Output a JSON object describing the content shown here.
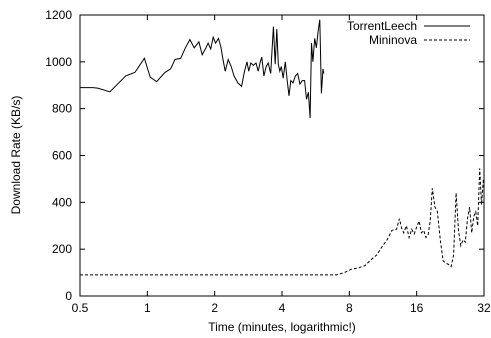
{
  "chart_data": {
    "type": "line",
    "title": "",
    "xlabel": "Time (minutes, logarithmic!)",
    "ylabel": "Download Rate (KB/s)",
    "x_scale": "log2",
    "xlim": [
      0.5,
      32
    ],
    "ylim": [
      0,
      1200
    ],
    "x_ticks": [
      0.5,
      1,
      2,
      4,
      8,
      16,
      32
    ],
    "x_tick_labels": [
      "0.5",
      "1",
      "2",
      "4",
      "8",
      "16",
      "32"
    ],
    "y_ticks": [
      0,
      200,
      400,
      600,
      800,
      1000,
      1200
    ],
    "y_tick_labels": [
      "0",
      "200",
      "400",
      "600",
      "800",
      "1000",
      "1200"
    ],
    "grid": false,
    "legend_position": "top-right",
    "series": [
      {
        "name": "TorrentLeech",
        "style": "solid",
        "points": [
          [
            0.5,
            890
          ],
          [
            0.57,
            890
          ],
          [
            0.6,
            888
          ],
          [
            0.68,
            872
          ],
          [
            0.8,
            940
          ],
          [
            0.88,
            955
          ],
          [
            0.97,
            1015
          ],
          [
            1.03,
            935
          ],
          [
            1.1,
            915
          ],
          [
            1.2,
            955
          ],
          [
            1.27,
            970
          ],
          [
            1.33,
            1010
          ],
          [
            1.41,
            1015
          ],
          [
            1.48,
            1060
          ],
          [
            1.55,
            1095
          ],
          [
            1.62,
            1060
          ],
          [
            1.7,
            1085
          ],
          [
            1.76,
            1030
          ],
          [
            1.83,
            1060
          ],
          [
            1.87,
            1080
          ],
          [
            1.92,
            1055
          ],
          [
            1.97,
            1105
          ],
          [
            2.02,
            1080
          ],
          [
            2.08,
            1100
          ],
          [
            2.13,
            1065
          ],
          [
            2.18,
            1010
          ],
          [
            2.23,
            960
          ],
          [
            2.3,
            1010
          ],
          [
            2.37,
            980
          ],
          [
            2.44,
            940
          ],
          [
            2.54,
            910
          ],
          [
            2.64,
            895
          ],
          [
            2.72,
            960
          ],
          [
            2.79,
            1000
          ],
          [
            2.84,
            960
          ],
          [
            2.9,
            995
          ],
          [
            2.98,
            985
          ],
          [
            3.06,
            995
          ],
          [
            3.13,
            960
          ],
          [
            3.2,
            1000
          ],
          [
            3.25,
            1020
          ],
          [
            3.32,
            940
          ],
          [
            3.4,
            980
          ],
          [
            3.47,
            995
          ],
          [
            3.56,
            950
          ],
          [
            3.66,
            1150
          ],
          [
            3.73,
            990
          ],
          [
            3.79,
            1140
          ],
          [
            3.85,
            990
          ],
          [
            3.91,
            960
          ],
          [
            3.97,
            980
          ],
          [
            4.05,
            930
          ],
          [
            4.14,
            1000
          ],
          [
            4.22,
            920
          ],
          [
            4.3,
            855
          ],
          [
            4.38,
            920
          ],
          [
            4.48,
            910
          ],
          [
            4.59,
            940
          ],
          [
            4.7,
            950
          ],
          [
            4.81,
            905
          ],
          [
            4.93,
            920
          ],
          [
            5.05,
            920
          ],
          [
            5.15,
            840
          ],
          [
            5.25,
            870
          ],
          [
            5.34,
            760
          ],
          [
            5.42,
            1080
          ],
          [
            5.5,
            1000
          ],
          [
            5.6,
            1100
          ],
          [
            5.7,
            1060
          ],
          [
            5.8,
            1130
          ],
          [
            5.9,
            1180
          ],
          [
            6.0,
            865
          ],
          [
            6.1,
            970
          ],
          [
            6.15,
            950
          ]
        ]
      },
      {
        "name": "Mininova",
        "style": "dashed",
        "points": [
          [
            0.5,
            90
          ],
          [
            7.0,
            90
          ],
          [
            7.6,
            100
          ],
          [
            8.2,
            115
          ],
          [
            8.8,
            120
          ],
          [
            9.4,
            130
          ],
          [
            10.0,
            155
          ],
          [
            10.6,
            175
          ],
          [
            11.2,
            210
          ],
          [
            11.8,
            240
          ],
          [
            12.4,
            280
          ],
          [
            13.0,
            285
          ],
          [
            13.4,
            330
          ],
          [
            13.7,
            290
          ],
          [
            14.0,
            270
          ],
          [
            14.4,
            300
          ],
          [
            14.8,
            250
          ],
          [
            15.2,
            285
          ],
          [
            15.6,
            265
          ],
          [
            16.0,
            295
          ],
          [
            16.4,
            320
          ],
          [
            16.8,
            270
          ],
          [
            17.2,
            280
          ],
          [
            17.6,
            250
          ],
          [
            18.0,
            260
          ],
          [
            18.4,
            320
          ],
          [
            18.8,
            460
          ],
          [
            19.3,
            380
          ],
          [
            19.8,
            360
          ],
          [
            20.4,
            240
          ],
          [
            21.0,
            150
          ],
          [
            21.6,
            140
          ],
          [
            22.2,
            135
          ],
          [
            22.8,
            125
          ],
          [
            23.4,
            175
          ],
          [
            24.0,
            440
          ],
          [
            24.6,
            280
          ],
          [
            25.2,
            215
          ],
          [
            25.8,
            240
          ],
          [
            26.4,
            230
          ],
          [
            27.0,
            330
          ],
          [
            27.6,
            380
          ],
          [
            28.2,
            270
          ],
          [
            28.8,
            340
          ],
          [
            29.4,
            360
          ],
          [
            30.0,
            300
          ],
          [
            30.6,
            545
          ],
          [
            31.2,
            390
          ],
          [
            31.8,
            500
          ],
          [
            32.0,
            470
          ]
        ]
      }
    ]
  }
}
